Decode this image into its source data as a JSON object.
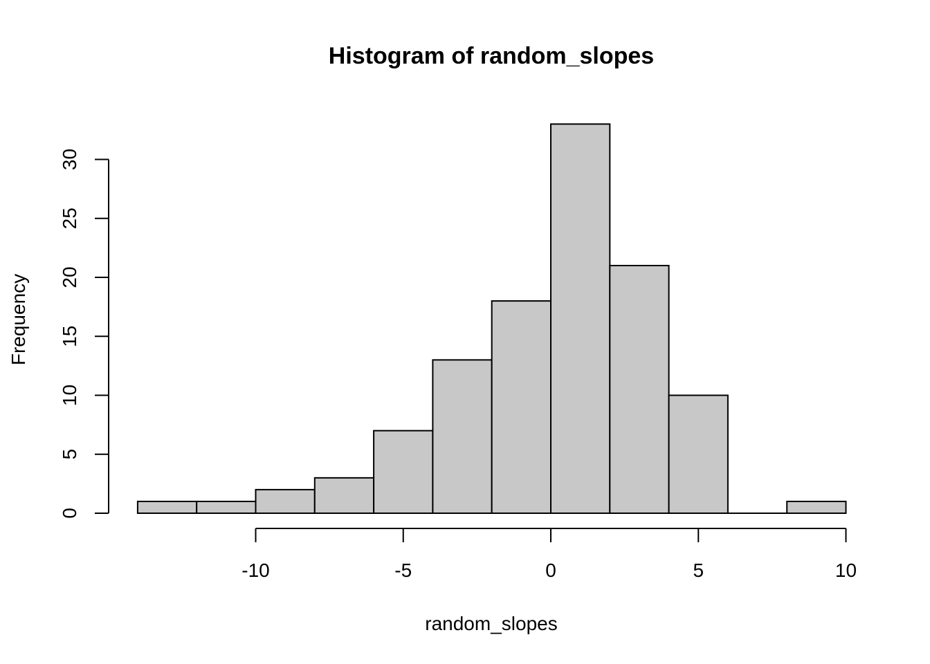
{
  "chart_data": {
    "type": "bar",
    "title": "Histogram of random_slopes",
    "xlabel": "random_slopes",
    "ylabel": "Frequency",
    "bins": [
      {
        "from": -14,
        "to": -12,
        "count": 1
      },
      {
        "from": -12,
        "to": -10,
        "count": 1
      },
      {
        "from": -10,
        "to": -8,
        "count": 2
      },
      {
        "from": -8,
        "to": -6,
        "count": 3
      },
      {
        "from": -6,
        "to": -4,
        "count": 7
      },
      {
        "from": -4,
        "to": -2,
        "count": 13
      },
      {
        "from": -2,
        "to": 0,
        "count": 18
      },
      {
        "from": 0,
        "to": 2,
        "count": 33
      },
      {
        "from": 2,
        "to": 4,
        "count": 21
      },
      {
        "from": 4,
        "to": 6,
        "count": 10
      },
      {
        "from": 6,
        "to": 8,
        "count": 0
      },
      {
        "from": 8,
        "to": 10,
        "count": 1
      }
    ],
    "xticks": [
      -10,
      -5,
      0,
      5,
      10
    ],
    "yticks": [
      0,
      5,
      10,
      15,
      20,
      25,
      30
    ],
    "xlim": [
      -14,
      10
    ],
    "ylim": [
      0,
      33
    ],
    "grid": false,
    "colors": {
      "bar_fill": "#c8c8c8",
      "bar_stroke": "#000000"
    }
  }
}
